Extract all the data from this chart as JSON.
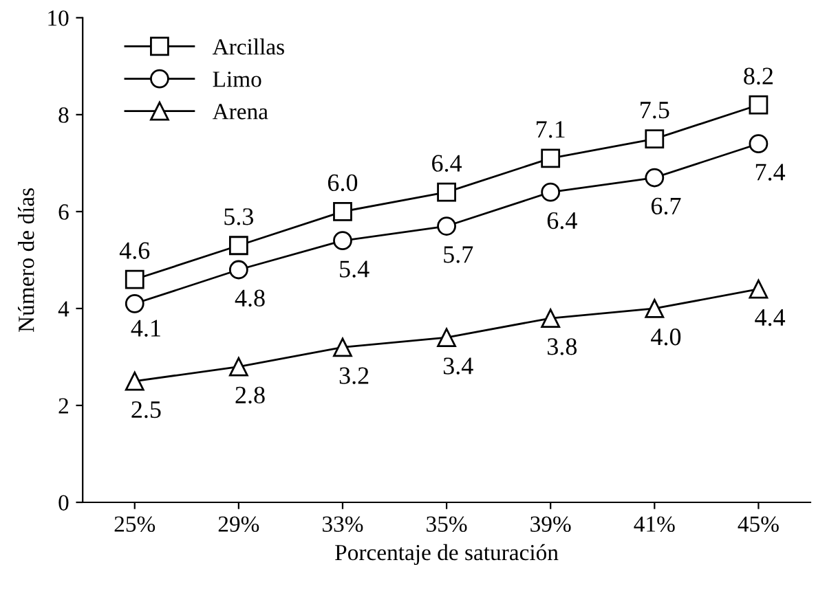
{
  "chart_data": {
    "type": "line",
    "xlabel": "Porcentaje de saturación",
    "ylabel": "Número de días",
    "categories": [
      "25%",
      "29%",
      "33%",
      "35%",
      "39%",
      "41%",
      "45%"
    ],
    "ylim": [
      0,
      10
    ],
    "yticks": [
      0,
      2,
      4,
      6,
      8,
      10
    ],
    "grid": false,
    "legend": "top left",
    "line_style": "solid",
    "series": [
      {
        "name": "Arcillas",
        "color": "#000000",
        "marker": "square",
        "values": [
          4.6,
          5.3,
          6.0,
          6.4,
          7.1,
          7.5,
          8.2
        ],
        "value_labels": [
          "4.6",
          "5.3",
          "6.0",
          "6.4",
          "7.1",
          "7.5",
          "8.2"
        ]
      },
      {
        "name": "Limo",
        "color": "#000000",
        "marker": "circle",
        "values": [
          4.1,
          4.8,
          5.4,
          5.7,
          6.4,
          6.7,
          7.4
        ],
        "value_labels": [
          "4.1",
          "4.8",
          "5.4",
          "5.7",
          "6.4",
          "6.7",
          "7.4"
        ]
      },
      {
        "name": "Arena",
        "color": "#000000",
        "marker": "triangle",
        "values": [
          2.5,
          2.8,
          3.2,
          3.4,
          3.8,
          4.0,
          4.4
        ],
        "value_labels": [
          "2.5",
          "2.8",
          "3.2",
          "3.4",
          "3.8",
          "4.0",
          "4.4"
        ]
      }
    ]
  }
}
